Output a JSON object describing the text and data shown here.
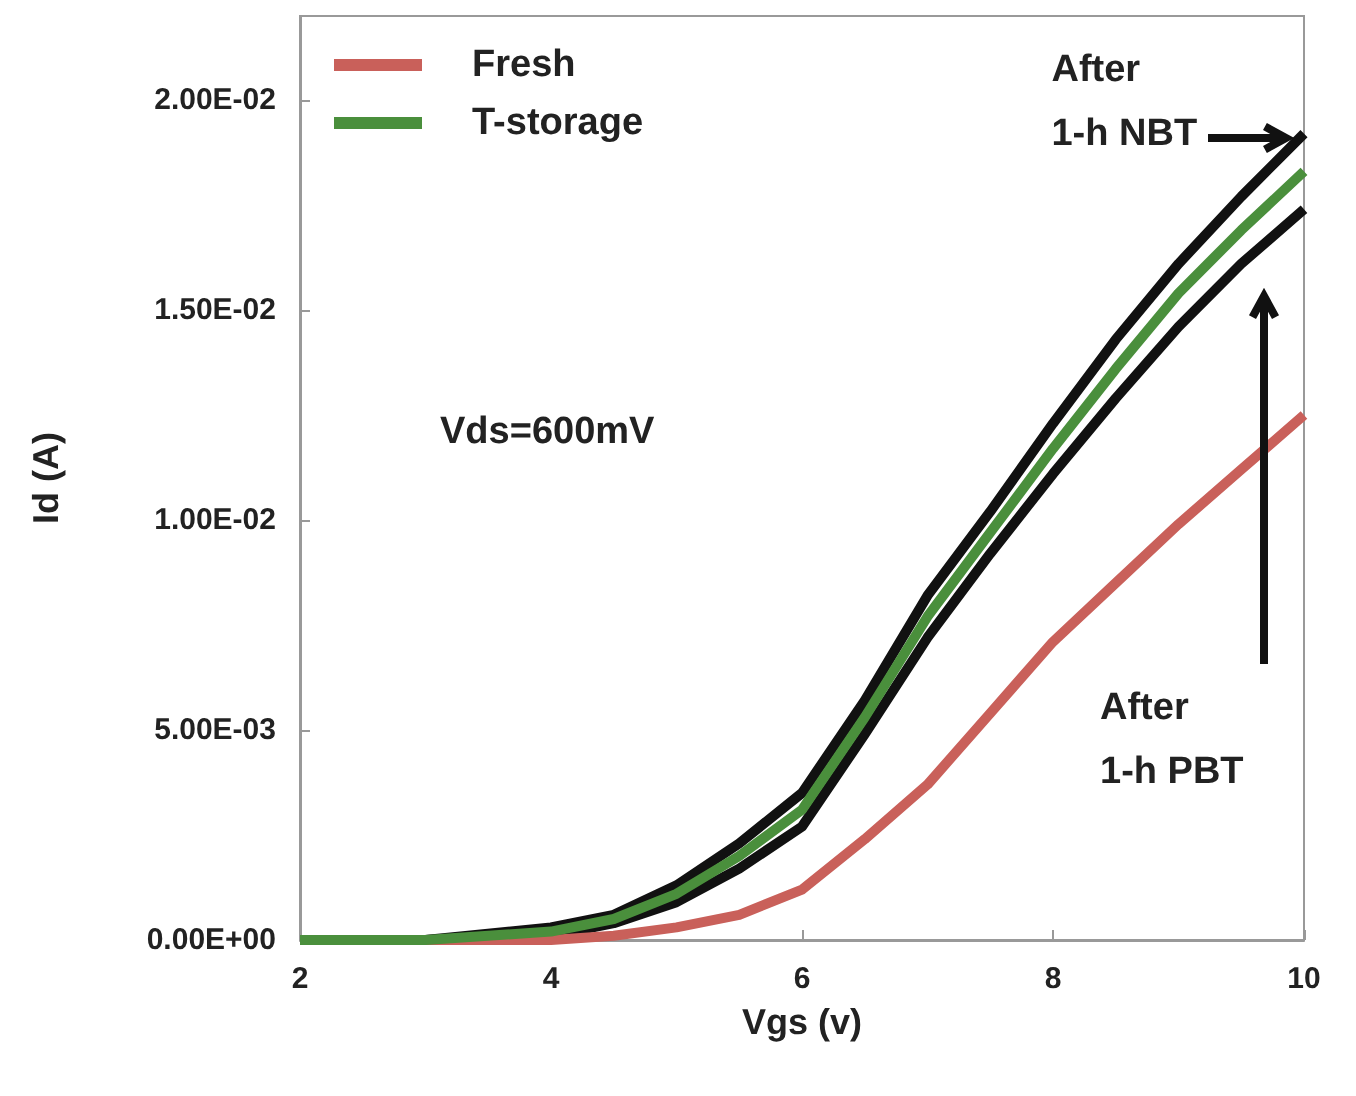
{
  "chart_data": {
    "type": "line",
    "xlabel": "Vgs (v)",
    "ylabel": "Id (A)",
    "x": [
      2,
      3,
      4,
      4.5,
      5,
      5.5,
      6,
      6.5,
      7,
      7.5,
      8,
      8.5,
      9,
      9.5,
      10
    ],
    "series": [
      {
        "color": "#111111",
        "values": [
          0,
          0,
          0.0003,
          0.0006,
          0.0013,
          0.0023,
          0.0035,
          0.0057,
          0.0082,
          0.0102,
          0.0123,
          0.0143,
          0.0161,
          0.0177,
          0.0192
        ]
      },
      {
        "color": "#111111",
        "values": [
          0,
          0,
          0.0001,
          0.0004,
          0.0009,
          0.0017,
          0.0027,
          0.0049,
          0.0072,
          0.0092,
          0.0111,
          0.0129,
          0.0146,
          0.0161,
          0.0174
        ]
      },
      {
        "name": "Fresh",
        "color": "#c9605a",
        "values": [
          0,
          0,
          0,
          0.0001,
          0.0003,
          0.0006,
          0.0012,
          0.0024,
          0.0037,
          0.0054,
          0.0071,
          0.0085,
          0.0099,
          0.0112,
          0.0125
        ]
      },
      {
        "name": "T-storage",
        "color": "#4a8f3c",
        "values": [
          0,
          0,
          0.0002,
          0.0005,
          0.0011,
          0.002,
          0.0031,
          0.0053,
          0.0077,
          0.0097,
          0.0117,
          0.0136,
          0.0154,
          0.0169,
          0.0183
        ]
      }
    ],
    "xlim": [
      2,
      10
    ],
    "xticks": [
      2,
      4,
      6,
      8,
      10
    ],
    "ylim": [
      0,
      0.022
    ],
    "yticks": [
      {
        "value": 0,
        "label": "0.00E+00"
      },
      {
        "value": 0.005,
        "label": "5.00E-03"
      },
      {
        "value": 0.01,
        "label": "1.00E-02"
      },
      {
        "value": 0.015,
        "label": "1.50E-02"
      },
      {
        "value": 0.02,
        "label": "2.00E-02"
      }
    ],
    "annotations": [
      "Vds=600mV",
      {
        "text": "After\n1-h NBT",
        "x": 9.9,
        "y": 0.0191
      },
      "After\n1-h PBT"
    ],
    "legend": "top left",
    "grid": false,
    "marker": "none",
    "line_style": "solid"
  }
}
